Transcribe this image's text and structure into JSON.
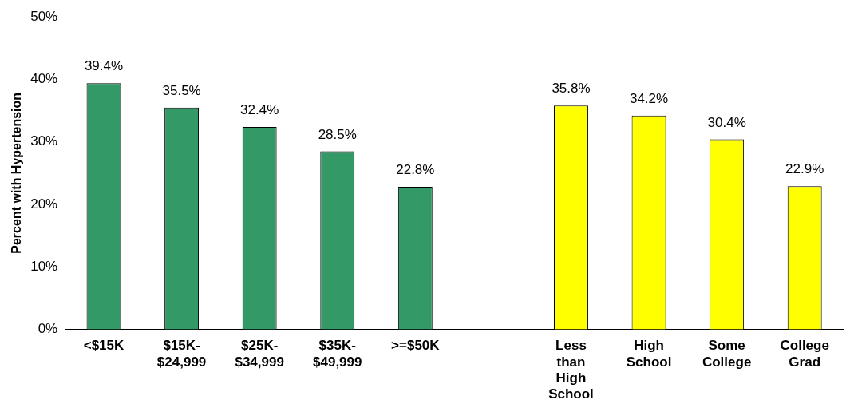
{
  "chart_data": {
    "type": "bar",
    "ylabel": "Percent with Hypertension",
    "categories": [
      "<$15K",
      "$15K-$24,999",
      "$25K-$34,999",
      "$35K-$49,999",
      ">=$50K",
      null,
      "Less than High School",
      "High School",
      "Some College",
      "College Grad"
    ],
    "values": [
      39.4,
      35.5,
      32.4,
      28.5,
      22.8,
      null,
      35.8,
      34.2,
      30.4,
      22.9
    ],
    "colors": [
      "#339966",
      "#339966",
      "#339966",
      "#339966",
      "#339966",
      "#339966",
      "#ffff00",
      "#ffff00",
      "#ffff00",
      "#ffff00"
    ],
    "value_labels": [
      "39.4%",
      "35.5%",
      "32.4%",
      "28.5%",
      "22.8%",
      null,
      "35.8%",
      "34.2%",
      "30.4%",
      "22.9%"
    ],
    "ylim": [
      0,
      50
    ],
    "yticks": [
      {
        "value": 0,
        "label": "0%"
      },
      {
        "value": 10,
        "label": "10%"
      },
      {
        "value": 20,
        "label": "20%"
      },
      {
        "value": 30,
        "label": "30%"
      },
      {
        "value": 40,
        "label": "40%"
      },
      {
        "value": 50,
        "label": "50%"
      }
    ],
    "grid": false,
    "legend": false
  }
}
